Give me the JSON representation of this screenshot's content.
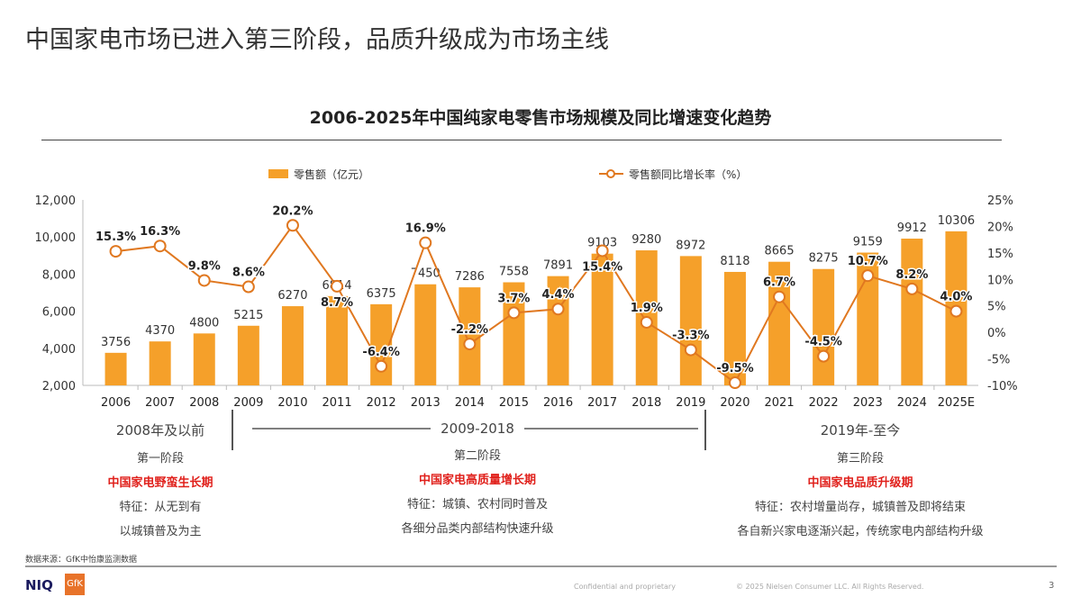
{
  "title": "中国家电市场已进入第三阶段，品质升级成为市场主线",
  "chart_data": {
    "type": "bar+line",
    "title": "2006-2025年中国纯家电零售市场规模及同比增速变化趋势",
    "categories": [
      "2006",
      "2007",
      "2008",
      "2009",
      "2010",
      "2011",
      "2012",
      "2013",
      "2014",
      "2015",
      "2016",
      "2017",
      "2018",
      "2019",
      "2020",
      "2021",
      "2022",
      "2023",
      "2024",
      "2025E"
    ],
    "series": [
      {
        "name": "零售额（亿元）",
        "type": "bar",
        "axis": "left",
        "color": "#f5a02a",
        "values": [
          3756,
          4370,
          4800,
          5215,
          6270,
          6814,
          6375,
          7450,
          7286,
          7558,
          7891,
          9103,
          9280,
          8972,
          8118,
          8665,
          8275,
          9159,
          9912,
          10306
        ]
      },
      {
        "name": "零售额同比增长率（%）",
        "type": "line",
        "axis": "right",
        "color": "#e07820",
        "values": [
          15.3,
          16.3,
          9.8,
          8.6,
          20.2,
          8.7,
          -6.4,
          16.9,
          -2.2,
          3.7,
          4.4,
          15.4,
          1.9,
          -3.3,
          -9.5,
          6.7,
          -4.5,
          10.7,
          8.2,
          4.0
        ]
      }
    ],
    "left_axis": {
      "ylim": [
        2000,
        12000
      ],
      "ticks": [
        "2,000",
        "4,000",
        "6,000",
        "8,000",
        "10,000",
        "12,000"
      ]
    },
    "right_axis": {
      "ylim": [
        -10,
        25
      ],
      "ticks": [
        "-10%",
        "-5%",
        "0%",
        "5%",
        "10%",
        "15%",
        "20%",
        "25%"
      ]
    },
    "legend": "top",
    "grid": false
  },
  "stages": [
    {
      "period": "2008年及以前",
      "name": "第一阶段",
      "theme": "中国家电野蛮生长期",
      "desc": [
        "特征：从无到有",
        "以城镇普及为主"
      ]
    },
    {
      "period": "2009-2018",
      "name": "第二阶段",
      "theme": "中国家电高质量增长期",
      "desc": [
        "特征：城镇、农村同时普及",
        "各细分品类内部结构快速升级"
      ]
    },
    {
      "period": "2019年-至今",
      "name": "第三阶段",
      "theme": "中国家电品质升级期",
      "desc": [
        "特征：农村增量尚存，城镇普及即将结束",
        "各自新兴家电逐渐兴起，传统家电内部结构升级"
      ]
    }
  ],
  "source": "数据来源：GfK中怡康监测数据",
  "footer": {
    "logo1": "NIQ",
    "logo2": "GfK",
    "confidential": "Confidential and proprietary",
    "copyright": "© 2025 Nielsen Consumer LLC. All Rights Reserved.",
    "page": "3"
  }
}
